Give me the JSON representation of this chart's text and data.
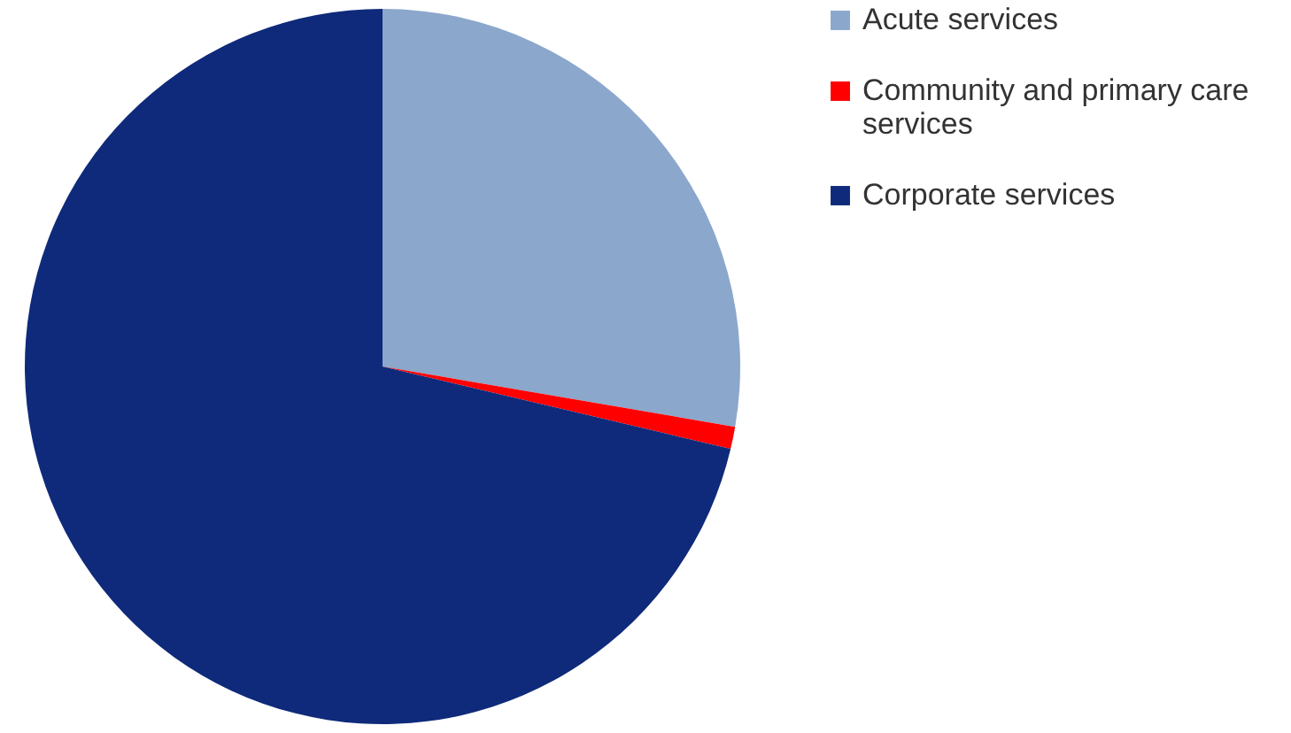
{
  "chart_data": {
    "type": "pie",
    "categories": [
      "Acute services",
      "Community and primary care services",
      "Corporate services"
    ],
    "values": [
      27.7,
      1.0,
      71.3
    ],
    "colors": [
      "#8ba7cc",
      "#ff0000",
      "#0f2a7a"
    ],
    "legend": "right"
  }
}
